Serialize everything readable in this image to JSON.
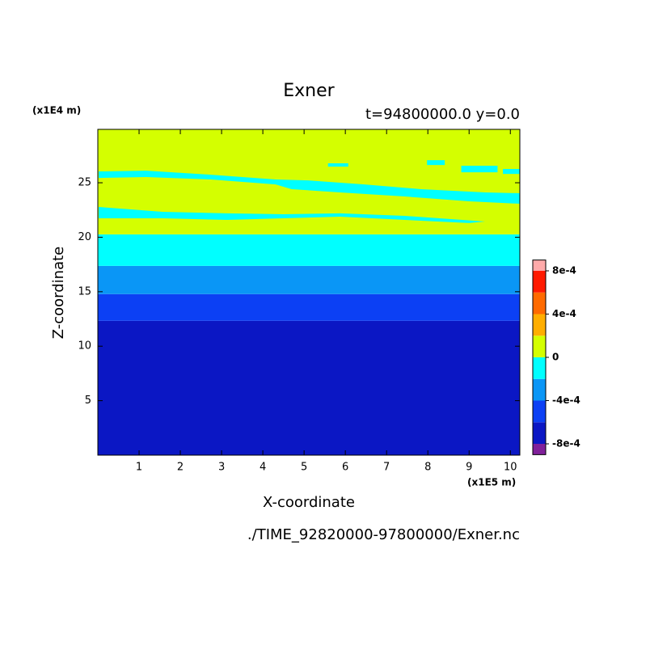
{
  "chart_data": {
    "type": "contour",
    "title": "Exner",
    "subtitle": "t=94800000.0 y=0.0",
    "x_label": "X-coordinate",
    "y_label": "Z-coordinate",
    "x_unit": "(x1E5 m)",
    "y_unit": "(x1E4 m)",
    "footer": "./TIME_92820000-97800000/Exner.nc",
    "xlim": [
      0,
      10.23
    ],
    "ylim": [
      0,
      29.9
    ],
    "xticks": [
      1,
      2,
      3,
      4,
      5,
      6,
      7,
      8,
      9,
      10
    ],
    "yticks": [
      5,
      10,
      15,
      20,
      25
    ],
    "levels": [
      -0.0008,
      -0.0006,
      -0.0004,
      -0.0002,
      0,
      0.0002,
      0.0004,
      0.0006,
      0.0008
    ],
    "colors": [
      "#80209a",
      "#0b17c4",
      "#0c40f4",
      "#0a96f6",
      "#00ffff",
      "#d4ff00",
      "#ffae00",
      "#ff6a00",
      "#ff1a00",
      "#ffaaaa"
    ],
    "colorbar_ticks": [
      {
        "value": 0.0008,
        "label": "8e-4"
      },
      {
        "value": 0.0004,
        "label": "4e-4"
      },
      0,
      {
        "value": -0.0004,
        "label": "-4e-4"
      },
      {
        "value": -0.0008,
        "label": "-8e-4"
      }
    ],
    "bands": [
      {
        "value": -0.0007,
        "z": [
          0,
          12.33
        ]
      },
      {
        "value": -0.0005,
        "z": [
          12.33,
          14.78
        ]
      },
      {
        "value": -0.0003,
        "z": [
          14.78,
          17.37
        ]
      },
      {
        "value": -0.0001,
        "z": [
          17.37,
          20.26
        ]
      },
      {
        "value": 0.0001,
        "z": [
          20.26,
          29.9
        ]
      }
    ],
    "regions": [
      {
        "value": -0.0001,
        "x": [
          0.02,
          1.17,
          2.74,
          4.31,
          5.09,
          6.46,
          7.83,
          9.39,
          10.23,
          10.23,
          9.0,
          7.44,
          5.87,
          4.7,
          4.31,
          2.74,
          1.17,
          0.02
        ],
        "z": [
          26.04,
          26.11,
          25.74,
          25.3,
          25.22,
          24.85,
          24.41,
          24.11,
          24.04,
          23.07,
          23.3,
          23.74,
          24.11,
          24.41,
          24.85,
          25.3,
          25.52,
          25.44
        ]
      },
      {
        "value": -0.0001,
        "x": [
          0.02,
          1.57,
          3.13,
          4.5,
          5.87,
          7.44,
          9.39,
          9.0,
          7.44,
          5.87,
          4.5,
          3.13,
          1.57,
          0.02
        ],
        "z": [
          22.78,
          22.33,
          22.19,
          22.11,
          22.19,
          21.96,
          21.44,
          21.3,
          21.59,
          21.89,
          21.74,
          21.59,
          21.74,
          21.74
        ]
      },
      {
        "value": -0.0001,
        "x": [
          5.58,
          6.07,
          6.07,
          5.58
        ],
        "z": [
          26.78,
          26.78,
          26.48,
          26.48
        ]
      },
      {
        "value": -0.0001,
        "x": [
          7.98,
          8.41,
          8.41,
          7.98
        ],
        "z": [
          27.07,
          27.07,
          26.63,
          26.63
        ]
      },
      {
        "value": -0.0001,
        "x": [
          8.81,
          9.69,
          9.69,
          8.81
        ],
        "z": [
          26.56,
          26.56,
          25.96,
          25.96
        ]
      },
      {
        "value": -0.0001,
        "x": [
          9.82,
          10.23,
          10.23,
          9.82
        ],
        "z": [
          26.26,
          26.26,
          25.81,
          25.81
        ]
      }
    ]
  }
}
